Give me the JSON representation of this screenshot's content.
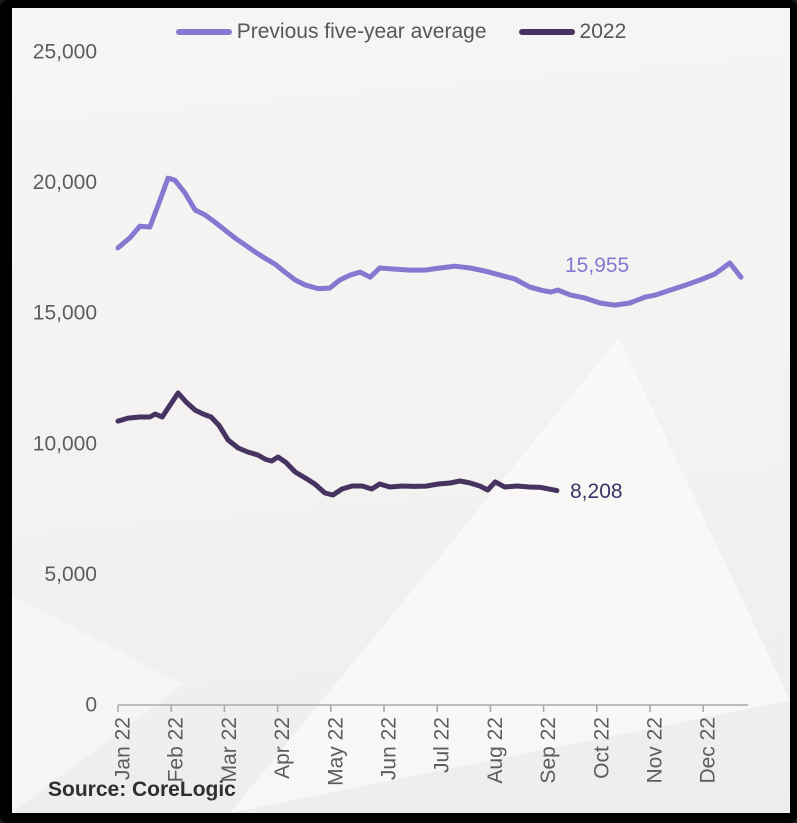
{
  "legend": {
    "items": [
      {
        "label": "Previous five-year average",
        "color": "#8478d0"
      },
      {
        "label": "2022",
        "color": "#46335f"
      }
    ]
  },
  "annotations": {
    "five_year_avg_value": "15,955",
    "y2022_value": "8,208",
    "five_year_avg_color": "#8478d0",
    "y2022_color": "#3b3366"
  },
  "source": {
    "text": "Source: CoreLogic"
  },
  "colors": {
    "axis": "#ababab",
    "tick_label": "#5d5d5d",
    "background": "#f3f2f1",
    "frame": "#000000"
  },
  "chart_data": {
    "type": "line",
    "title": "",
    "xlabel": "",
    "ylabel": "",
    "x_categories": [
      "Jan 22",
      "Feb 22",
      "Mar 22",
      "Apr 22",
      "May 22",
      "Jun 22",
      "Jul 22",
      "Aug 22",
      "Sep 22",
      "Oct 22",
      "Nov 22",
      "Dec 22"
    ],
    "y_ticks": [
      0,
      5000,
      10000,
      15000,
      20000,
      25000
    ],
    "ylim": [
      0,
      25000
    ],
    "grid": false,
    "legend_position": "top",
    "series": [
      {
        "id": "five-year-average",
        "name": "Previous five-year average",
        "color": "#8478d0",
        "end_label": "15,955",
        "points": [
          [
            0.0,
            17500
          ],
          [
            0.23,
            17900
          ],
          [
            0.41,
            18330
          ],
          [
            0.6,
            18300
          ],
          [
            0.79,
            19330
          ],
          [
            0.94,
            20170
          ],
          [
            1.07,
            20090
          ],
          [
            1.26,
            19600
          ],
          [
            1.45,
            18950
          ],
          [
            1.64,
            18760
          ],
          [
            1.82,
            18490
          ],
          [
            2.01,
            18180
          ],
          [
            2.2,
            17880
          ],
          [
            2.39,
            17610
          ],
          [
            2.58,
            17340
          ],
          [
            2.76,
            17110
          ],
          [
            2.95,
            16880
          ],
          [
            3.14,
            16570
          ],
          [
            3.33,
            16270
          ],
          [
            3.52,
            16080
          ],
          [
            3.76,
            15940
          ],
          [
            3.98,
            15960
          ],
          [
            4.17,
            16270
          ],
          [
            4.36,
            16460
          ],
          [
            4.55,
            16575
          ],
          [
            4.74,
            16380
          ],
          [
            4.92,
            16730
          ],
          [
            5.21,
            16690
          ],
          [
            5.49,
            16650
          ],
          [
            5.77,
            16650
          ],
          [
            6.05,
            16730
          ],
          [
            6.33,
            16800
          ],
          [
            6.62,
            16730
          ],
          [
            6.9,
            16610
          ],
          [
            7.18,
            16460
          ],
          [
            7.46,
            16310
          ],
          [
            7.74,
            16000
          ],
          [
            7.99,
            15860
          ],
          [
            8.14,
            15810
          ],
          [
            8.27,
            15885
          ],
          [
            8.5,
            15700
          ],
          [
            8.78,
            15580
          ],
          [
            9.06,
            15390
          ],
          [
            9.34,
            15310
          ],
          [
            9.62,
            15390
          ],
          [
            9.91,
            15615
          ],
          [
            10.09,
            15690
          ],
          [
            10.38,
            15885
          ],
          [
            10.66,
            16070
          ],
          [
            10.94,
            16270
          ],
          [
            11.22,
            16500
          ],
          [
            11.5,
            16920
          ],
          [
            11.71,
            16380
          ]
        ]
      },
      {
        "id": "2022",
        "name": "2022",
        "color": "#46335f",
        "end_label": "8,208",
        "points": [
          [
            0.0,
            10870
          ],
          [
            0.19,
            10985
          ],
          [
            0.41,
            11025
          ],
          [
            0.6,
            11025
          ],
          [
            0.7,
            11140
          ],
          [
            0.83,
            11025
          ],
          [
            0.98,
            11485
          ],
          [
            1.13,
            11945
          ],
          [
            1.28,
            11600
          ],
          [
            1.45,
            11290
          ],
          [
            1.6,
            11140
          ],
          [
            1.75,
            11025
          ],
          [
            1.9,
            10700
          ],
          [
            2.07,
            10145
          ],
          [
            2.26,
            9840
          ],
          [
            2.44,
            9685
          ],
          [
            2.63,
            9570
          ],
          [
            2.78,
            9400
          ],
          [
            2.89,
            9340
          ],
          [
            3.01,
            9495
          ],
          [
            3.16,
            9280
          ],
          [
            3.33,
            8920
          ],
          [
            3.52,
            8690
          ],
          [
            3.7,
            8460
          ],
          [
            3.89,
            8115
          ],
          [
            4.04,
            8040
          ],
          [
            4.21,
            8270
          ],
          [
            4.4,
            8385
          ],
          [
            4.59,
            8385
          ],
          [
            4.77,
            8270
          ],
          [
            4.92,
            8460
          ],
          [
            5.11,
            8345
          ],
          [
            5.34,
            8385
          ],
          [
            5.56,
            8370
          ],
          [
            5.79,
            8380
          ],
          [
            6.02,
            8460
          ],
          [
            6.24,
            8500
          ],
          [
            6.43,
            8575
          ],
          [
            6.62,
            8500
          ],
          [
            6.8,
            8385
          ],
          [
            6.95,
            8230
          ],
          [
            7.09,
            8540
          ],
          [
            7.27,
            8345
          ],
          [
            7.5,
            8385
          ],
          [
            7.73,
            8345
          ],
          [
            7.95,
            8330
          ],
          [
            8.25,
            8208
          ]
        ]
      }
    ]
  }
}
